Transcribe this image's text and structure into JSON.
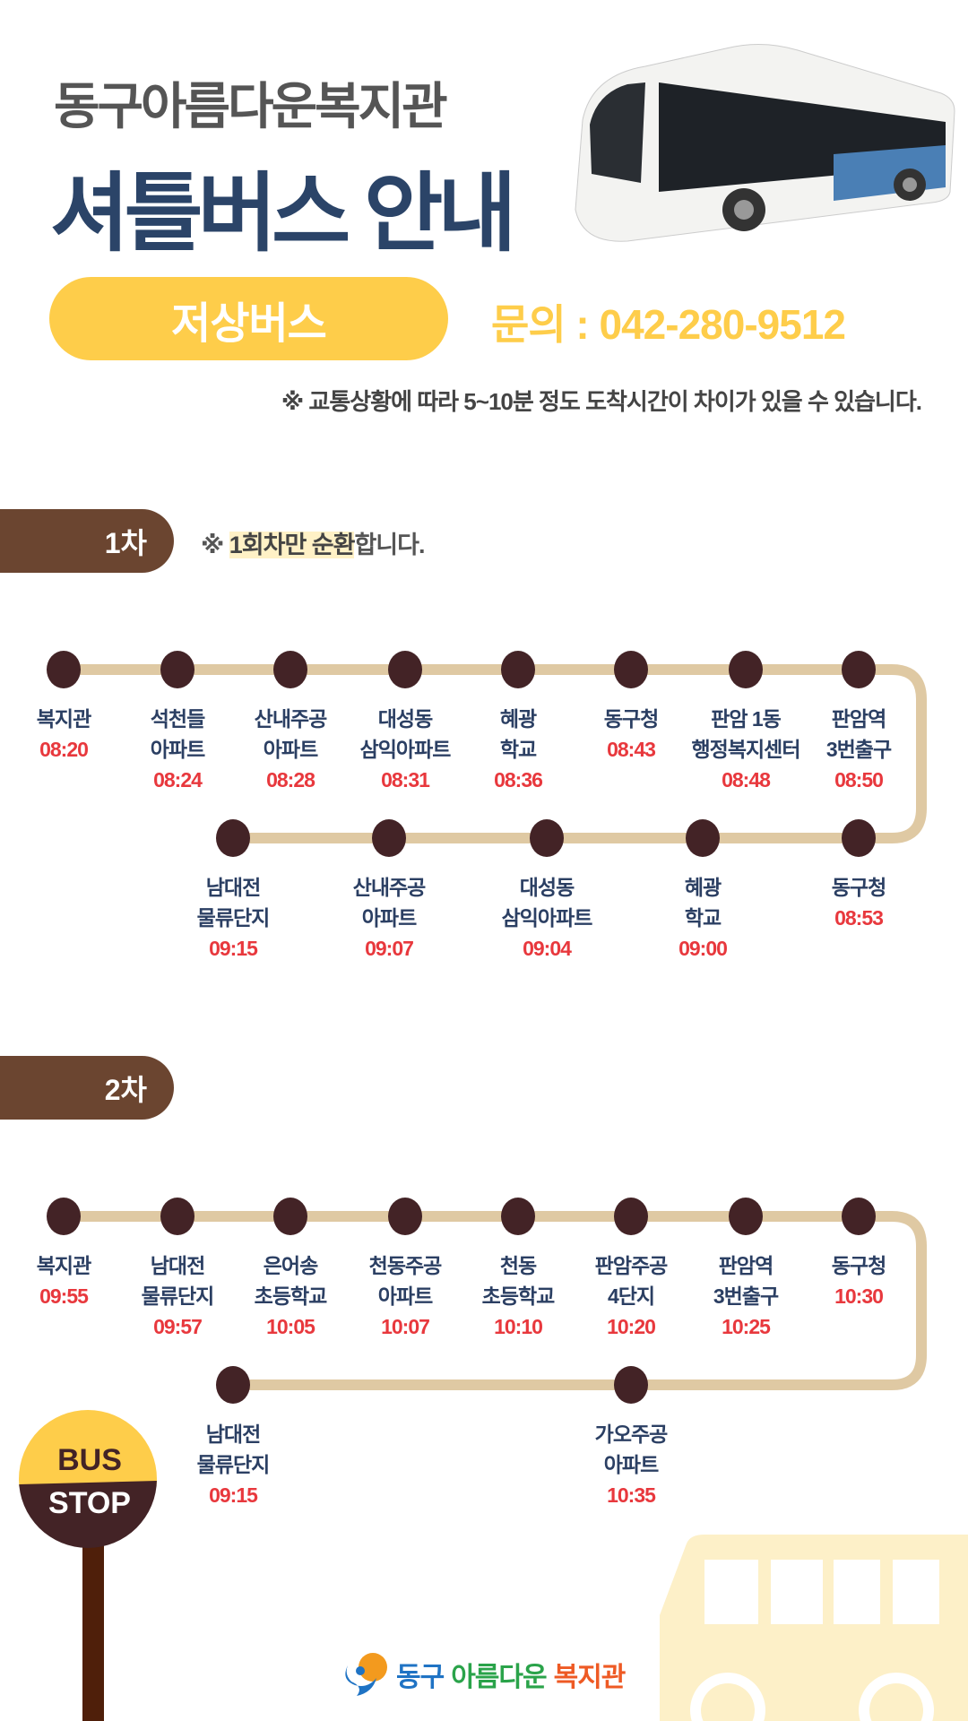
{
  "header": {
    "org_name": "동구아름다운복지관",
    "title": "셔틀버스 안내",
    "bus_type": "저상버스",
    "contact": "문의 : 042-280-9512",
    "notice": "※ 교통상황에 따라 5~10분 정도 도착시간이 차이가 있을 수 있습니다."
  },
  "route1": {
    "label": "1차",
    "note_prefix": "※ ",
    "note_highlight": "1회차만 순환",
    "note_suffix": "합니다.",
    "top": [
      {
        "name": [
          "복지관"
        ],
        "time": "08:20"
      },
      {
        "name": [
          "석천들",
          "아파트"
        ],
        "time": "08:24"
      },
      {
        "name": [
          "산내주공",
          "아파트"
        ],
        "time": "08:28"
      },
      {
        "name": [
          "대성동",
          "삼익아파트"
        ],
        "time": "08:31"
      },
      {
        "name": [
          "혜광",
          "학교"
        ],
        "time": "08:36"
      },
      {
        "name": [
          "동구청"
        ],
        "time": "08:43"
      },
      {
        "name": [
          "판암 1동",
          "행정복지센터"
        ],
        "time": "08:48"
      },
      {
        "name": [
          "판암역",
          "3번출구"
        ],
        "time": "08:50"
      }
    ],
    "bottom": [
      {
        "name": [
          "남대전",
          "물류단지"
        ],
        "time": "09:15"
      },
      {
        "name": [
          "산내주공",
          "아파트"
        ],
        "time": "09:07"
      },
      {
        "name": [
          "대성동",
          "삼익아파트"
        ],
        "time": "09:04"
      },
      {
        "name": [
          "혜광",
          "학교"
        ],
        "time": "09:00"
      },
      {
        "name": [
          "동구청"
        ],
        "time": "08:53"
      }
    ]
  },
  "route2": {
    "label": "2차",
    "top": [
      {
        "name": [
          "복지관"
        ],
        "time": "09:55"
      },
      {
        "name": [
          "남대전",
          "물류단지"
        ],
        "time": "09:57"
      },
      {
        "name": [
          "은어송",
          "초등학교"
        ],
        "time": "10:05"
      },
      {
        "name": [
          "천동주공",
          "아파트"
        ],
        "time": "10:07"
      },
      {
        "name": [
          "천동",
          "초등학교"
        ],
        "time": "10:10"
      },
      {
        "name": [
          "판암주공",
          "4단지"
        ],
        "time": "10:20"
      },
      {
        "name": [
          "판암역",
          "3번출구"
        ],
        "time": "10:25"
      },
      {
        "name": [
          "동구청"
        ],
        "time": "10:30"
      }
    ],
    "bottom": [
      {
        "name": [
          "남대전",
          "물류단지"
        ],
        "time": "09:15"
      },
      {
        "name": [
          "가오주공",
          "아파트"
        ],
        "time": "10:35"
      }
    ]
  },
  "bus_stop_sign": {
    "top": "BUS",
    "bottom": "STOP"
  },
  "footer_logo": {
    "part1": "동구",
    "part2": "아름다운",
    "part3": "복지관"
  },
  "colors": {
    "navy": "#2b4468",
    "yellow": "#fecd4a",
    "brown": "#6b4530",
    "route_line": "#dfc9a3",
    "stop_dot": "#432326",
    "time_red": "#e8383d"
  }
}
